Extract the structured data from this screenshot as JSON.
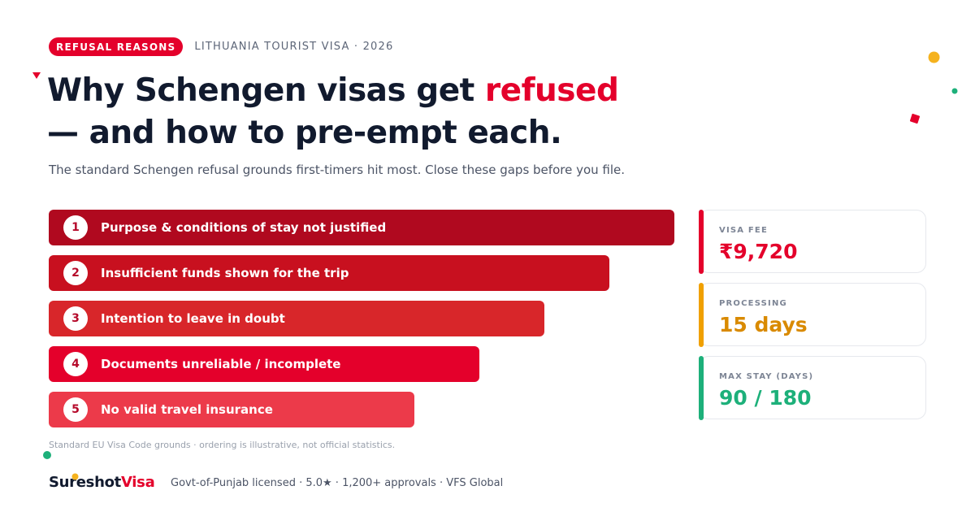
{
  "header": {
    "badge": "REFUSAL REASONS",
    "context": "LITHUANIA TOURIST VISA · 2026"
  },
  "headline": {
    "line1_pre": "Why Schengen visas get ",
    "line1_accent": "refused",
    "line2": "— and how to pre-empt each."
  },
  "subtitle": "The standard Schengen refusal grounds first-timers hit most. Close these gaps before you file.",
  "reasons": [
    {
      "number": "1",
      "label": "Purpose & conditions of stay not justified",
      "color": "#b0091f"
    },
    {
      "number": "2",
      "label": "Insufficient funds shown for the trip",
      "color": "#c8101f"
    },
    {
      "number": "3",
      "label": "Intention to leave in doubt",
      "color": "#d8262a"
    },
    {
      "number": "4",
      "label": "Documents unreliable / incomplete",
      "color": "#e4002b"
    },
    {
      "number": "5",
      "label": "No valid travel insurance",
      "color": "#ec3a4a"
    }
  ],
  "footnote": "Standard EU Visa Code grounds · ordering is illustrative, not official statistics.",
  "stats": [
    {
      "label": "VISA FEE",
      "value": "₹9,720",
      "color": "#e4002b"
    },
    {
      "label": "PROCESSING",
      "value": "15 days",
      "color": "#f0a000"
    },
    {
      "label": "MAX STAY (DAYS)",
      "value": "90 / 180",
      "color": "#1db07a"
    }
  ],
  "brand": {
    "name_pre": "Sureshot",
    "name_accent": "Visa",
    "tagline": "Govt-of-Punjab licensed · 5.0★ · 1,200+ approvals · VFS Global"
  },
  "colors": {
    "accent": "#e4002b",
    "navy": "#111a2e",
    "gold": "#f5b21e",
    "green": "#1db07a"
  }
}
